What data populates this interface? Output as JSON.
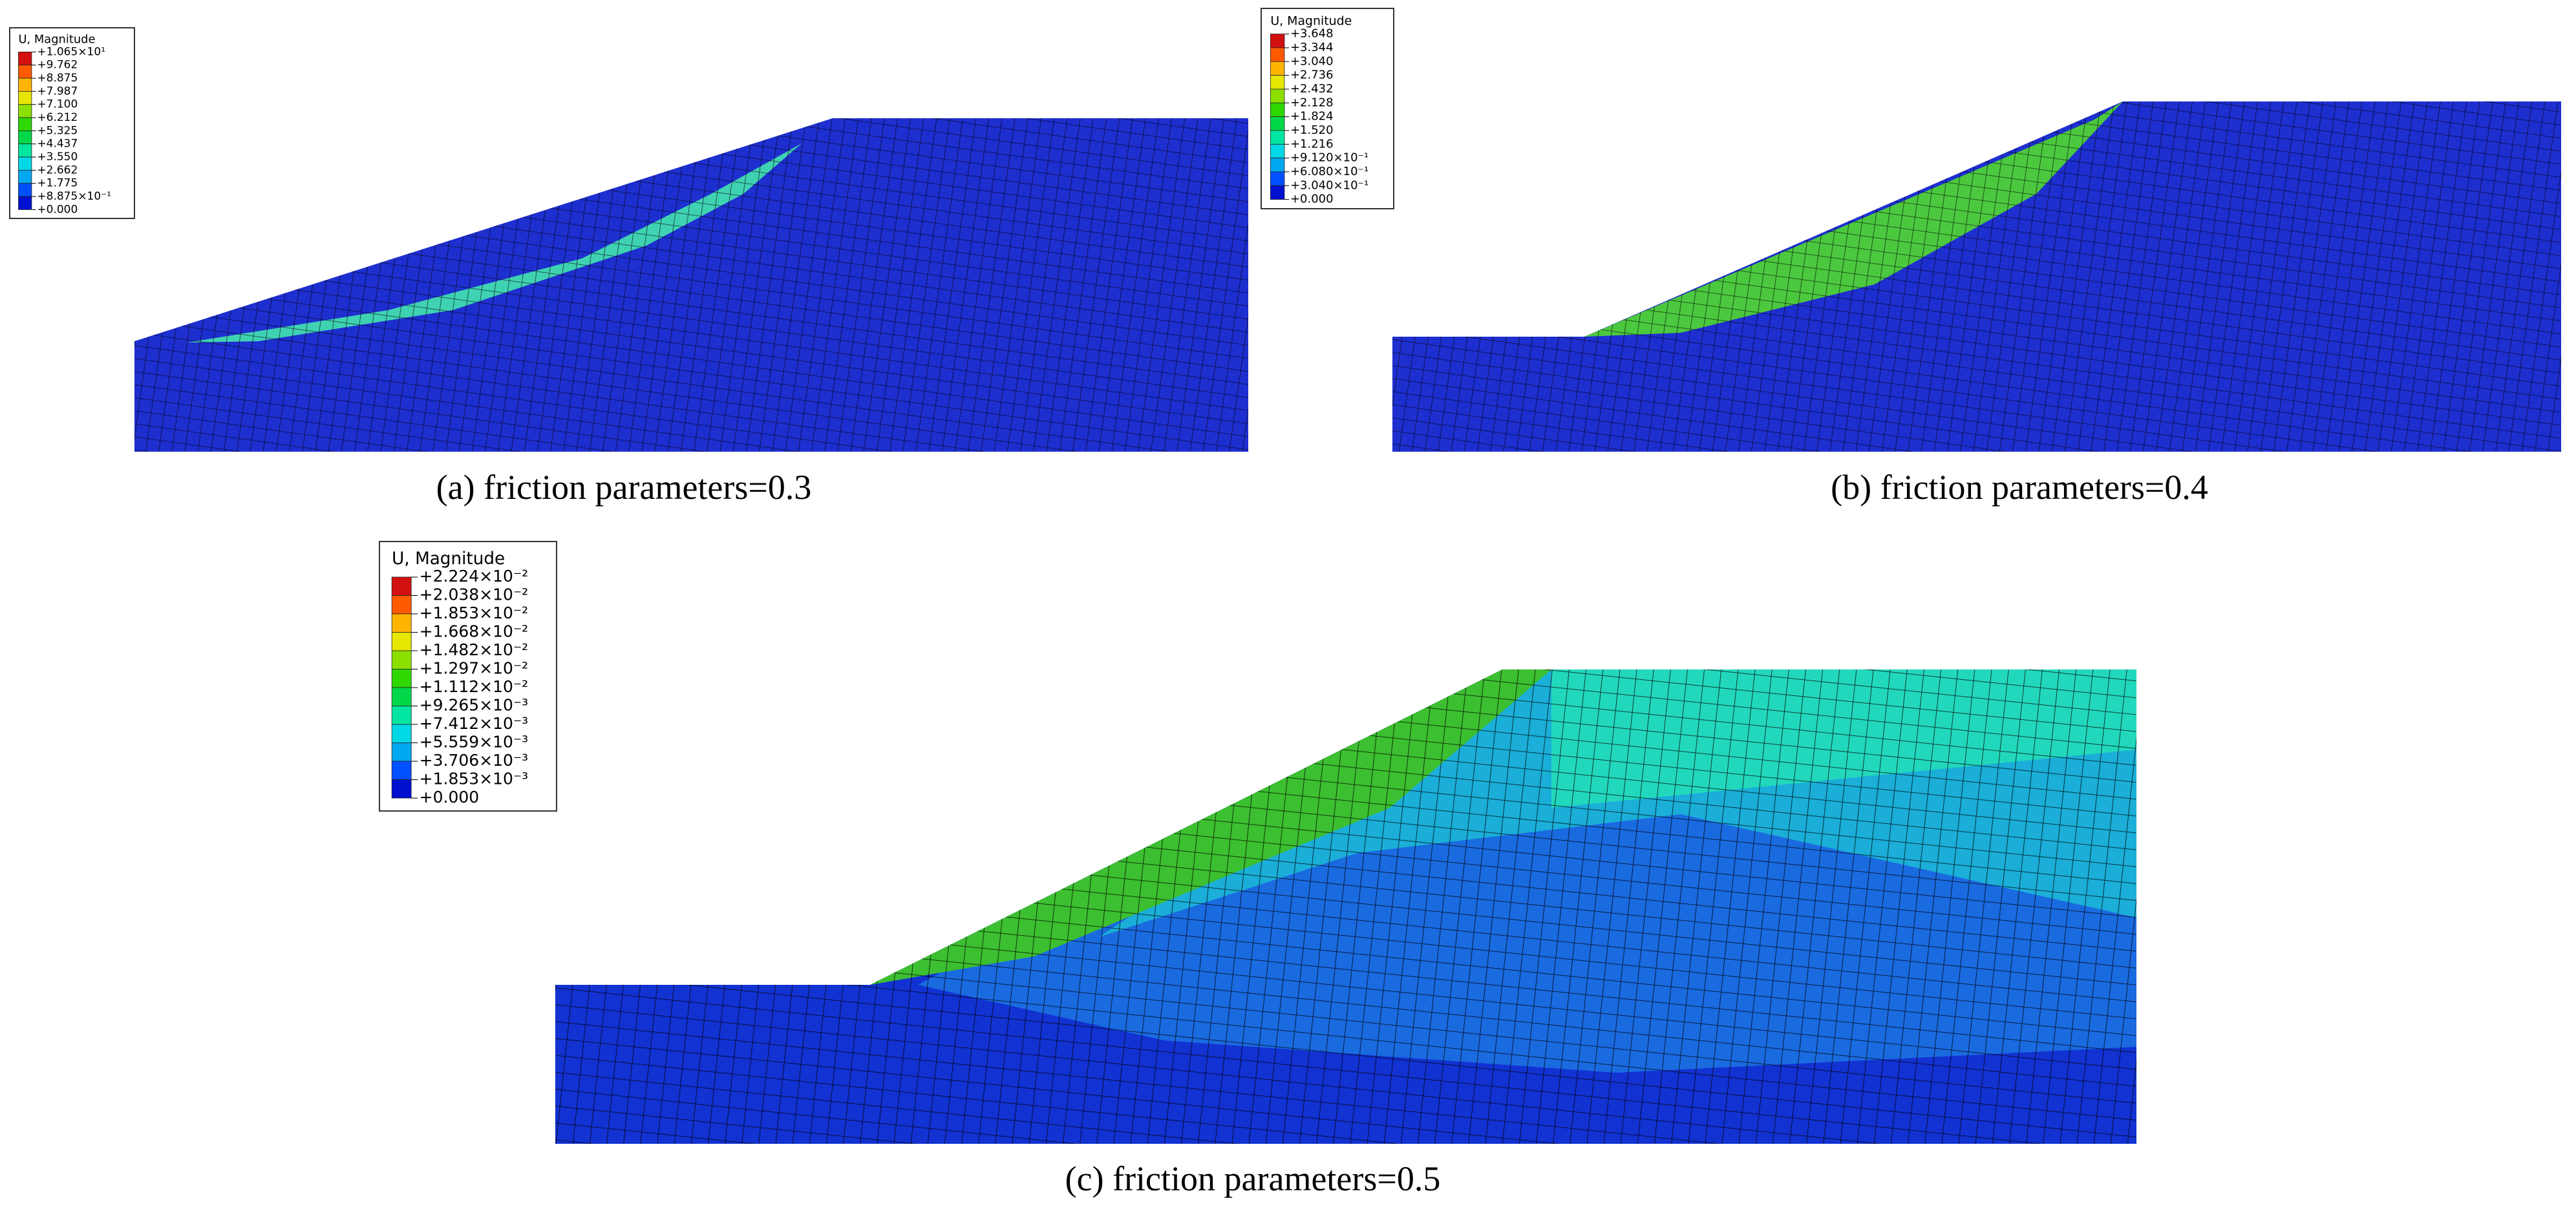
{
  "panels": [
    {
      "legend_title": "U, Magnitude",
      "legend_labels": [
        "+1.065×10¹",
        "+9.762",
        "+8.875",
        "+7.987",
        "+7.100",
        "+6.212",
        "+5.325",
        "+4.437",
        "+3.550",
        "+2.662",
        "+1.775",
        "+8.875×10⁻¹",
        "+0.000"
      ],
      "caption": "(a) friction parameters=0.3"
    },
    {
      "legend_title": "U, Magnitude",
      "legend_labels": [
        "+3.648",
        "+3.344",
        "+3.040",
        "+2.736",
        "+2.432",
        "+2.128",
        "+1.824",
        "+1.520",
        "+1.216",
        "+9.120×10⁻¹",
        "+6.080×10⁻¹",
        "+3.040×10⁻¹",
        "+0.000"
      ],
      "caption": "(b) friction parameters=0.4"
    },
    {
      "legend_title": "U, Magnitude",
      "legend_labels": [
        "+2.224×10⁻²",
        "+2.038×10⁻²",
        "+1.853×10⁻²",
        "+1.668×10⁻²",
        "+1.482×10⁻²",
        "+1.297×10⁻²",
        "+1.112×10⁻²",
        "+9.265×10⁻³",
        "+7.412×10⁻³",
        "+5.559×10⁻³",
        "+3.706×10⁻³",
        "+1.853×10⁻³",
        "+0.000"
      ],
      "caption": "(c) friction parameters=0.5"
    }
  ]
}
